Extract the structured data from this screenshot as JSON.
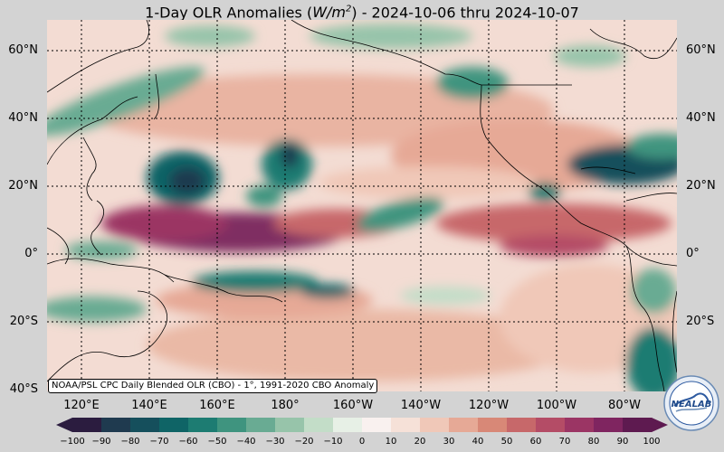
{
  "title": {
    "prefix": "1-Day OLR Anomalies (",
    "unit_base": "W/m",
    "unit_exp": "2",
    "suffix": ") - 2024-10-06 thru 2024-10-07"
  },
  "lat_labels": [
    "60°N",
    "40°N",
    "20°N",
    "0°",
    "20°S",
    "40°S"
  ],
  "lon_labels": [
    "120°E",
    "140°E",
    "160°E",
    "180°",
    "160°W",
    "140°W",
    "120°W",
    "100°W",
    "80°W"
  ],
  "source_note": "NOAA/PSL CPC Daily Blended OLR (CBO) - 1°, 1991-2020 CBO Anomaly",
  "colorbar": {
    "ticks": [
      "−100",
      "−90",
      "−80",
      "−70",
      "−60",
      "−50",
      "−40",
      "−30",
      "−20",
      "−10",
      "0",
      "10",
      "20",
      "30",
      "40",
      "50",
      "60",
      "70",
      "80",
      "90",
      "100"
    ],
    "colors": [
      "#2b1c3f",
      "#1f3a4f",
      "#154f5c",
      "#0f6466",
      "#1d7c72",
      "#3f947f",
      "#69ab93",
      "#97c4aa",
      "#c3ddc8",
      "#e7f0e6",
      "#f9f1ef",
      "#f6e1d8",
      "#f0c8b8",
      "#e6a996",
      "#d88877",
      "#c7686a",
      "#b44c66",
      "#9b3564",
      "#7f2560",
      "#5e1a50"
    ]
  },
  "colors": {
    "background": "#d3d3d3",
    "ocean_base": "#f3dcd3",
    "grid": "#000000"
  },
  "logo": {
    "text": "NEALAB"
  }
}
